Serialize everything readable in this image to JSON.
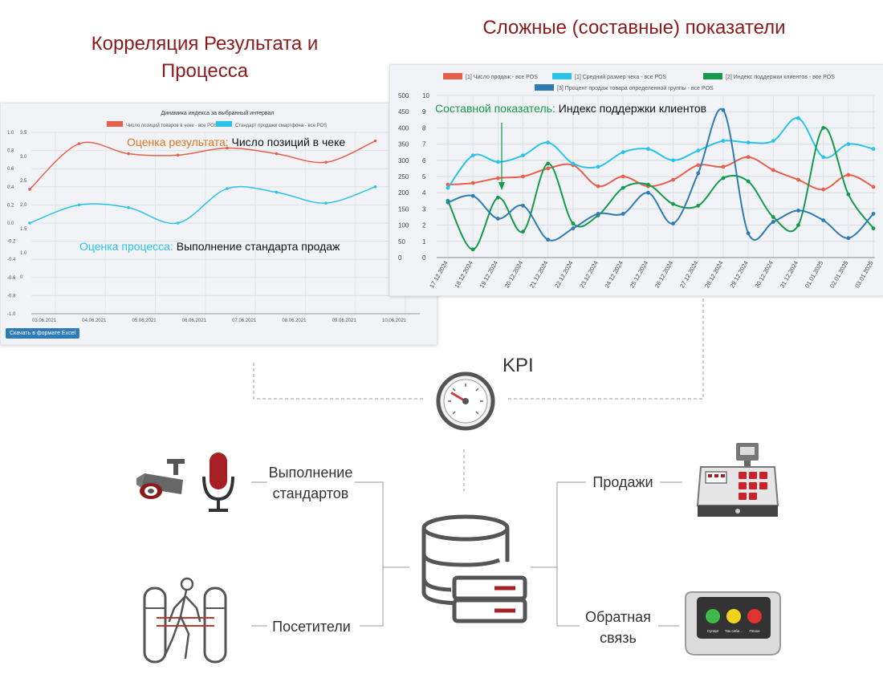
{
  "headings": {
    "left": "Корреляция  Результата и Процесса",
    "right": "Сложные (составные) показатели"
  },
  "kpi": {
    "label": "KPI"
  },
  "labels": {
    "standards": "Выполнение стандартов",
    "visitors": "Посетители",
    "sales": "Продажи",
    "feedback": "Обратная связь"
  },
  "left_panel": {
    "annotation_result_prefix": "Оценка результата:",
    "annotation_result_text": "Число позиций в чеке",
    "annotation_process_prefix": "Оценка процесса:",
    "annotation_process_text": "Выполнение стандарта продаж",
    "download_button": "Скачать в формате Excel"
  },
  "right_panel": {
    "annotation_prefix": "Составной показатель:",
    "annotation_text": "Индекс поддержки клиентов"
  },
  "feedback_device": {
    "buttons": [
      "Супер!",
      "Так себе...",
      "Плохо"
    ]
  },
  "colors": {
    "heading": "#8b1a1a",
    "red": "#e8604c",
    "cyan": "#28c4ec",
    "green": "#149c4c",
    "blue": "#2f7cb4",
    "result_orange": "#e0761c",
    "process_cyan": "#28c4ec"
  },
  "icons": [
    "gauge-icon",
    "camera-icon",
    "microphone-icon",
    "database-icon",
    "turnstile-icon",
    "cash-register-icon",
    "feedback-terminal-icon"
  ],
  "chart_data": [
    {
      "type": "line",
      "title": "Динамика индекса за выбранный интервал",
      "x": [
        "03.06.2021",
        "04.06.2021",
        "05.06.2021",
        "06.06.2021",
        "07.06.2021",
        "08.06.2021",
        "09.06.2021",
        "10.06.2021"
      ],
      "x_tick_labels": [
        "03.06.2021",
        "04.06.2021",
        "05.06.2021",
        "06.06.2021",
        "07.06.2021",
        "08.06.2021",
        "09.06.2021",
        "10.06.2021"
      ],
      "left_axis_ticks": [
        "1.0",
        "0.8",
        "0.6",
        "0.4",
        "0.2",
        "0.0",
        "-0.2",
        "-0.4",
        "-0.6",
        "-0.8",
        "-1.0"
      ],
      "right_axis_ticks": [
        "3.5",
        "3.0",
        "2.5",
        "2.0",
        "1.5",
        "1.0",
        "0"
      ],
      "ylim": [
        -1.0,
        1.0
      ],
      "grid": true,
      "legend": "top",
      "series": [
        {
          "name": "Число позиций товаров в чеке - все POS",
          "color": "#e8604c",
          "values": [
            1.5,
            3.1,
            2.75,
            2.7,
            2.95,
            2.75,
            2.45,
            3.2
          ]
        },
        {
          "name": "Стандарт продажи смартфона - все POS",
          "color": "#28c4ec",
          "values": [
            0.0,
            0.2,
            0.17,
            0.0,
            0.38,
            0.34,
            0.22,
            0.4
          ]
        }
      ]
    },
    {
      "type": "line",
      "x": [
        "17.12.2024",
        "18.12.2024",
        "19.12.2024",
        "20.12.2024",
        "21.12.2024",
        "22.12.2024",
        "23.12.2024",
        "24.12.2024",
        "25.12.2024",
        "26.12.2024",
        "27.12.2024",
        "28.12.2024",
        "29.12.2024",
        "30.12.2024",
        "31.12.2024",
        "01.01.2025",
        "02.01.2025",
        "03.01.2025"
      ],
      "x_tick_labels": [
        "17.12.2024",
        "18.12.2024",
        "19.12.2024",
        "20.12.2024",
        "21.12.2024",
        "22.12.2024",
        "23.12.2024",
        "24.12.2024",
        "25.12.2024",
        "26.12.2024",
        "27.12.2024",
        "28.12.2024",
        "29.12.2024",
        "30.12.2024",
        "31.12.2024",
        "01.01.2025",
        "02.01.2025",
        "03.01.2025"
      ],
      "left_axis_ticks": [
        "500",
        "450",
        "400",
        "350",
        "300",
        "250",
        "200",
        "150",
        "100",
        "50",
        "0"
      ],
      "right_axis_ticks": [
        "10",
        "9",
        "8",
        "7",
        "6",
        "5",
        "4",
        "3",
        "2",
        "1",
        "0"
      ],
      "ylim": [
        0,
        500
      ],
      "grid": true,
      "legend": "top",
      "series": [
        {
          "name": "[1]  Число продаж - все POS",
          "color": "#e8604c",
          "values": [
            225,
            230,
            245,
            250,
            275,
            285,
            220,
            250,
            220,
            240,
            285,
            280,
            310,
            270,
            240,
            210,
            255,
            218
          ]
        },
        {
          "name": "[1]  Средний размер чека - все POS",
          "color": "#28c4ec",
          "values": [
            215,
            315,
            295,
            315,
            355,
            290,
            280,
            325,
            335,
            300,
            330,
            360,
            355,
            360,
            430,
            310,
            350,
            335
          ]
        },
        {
          "name": "[2]  Индекс поддержки клиентов - все POS",
          "color": "#149c4c",
          "values": [
            3.5,
            0.5,
            3.7,
            1.6,
            5.8,
            2.1,
            2.6,
            4.3,
            4.5,
            3.3,
            3.2,
            4.9,
            4.7,
            2.5,
            2.0,
            8.0,
            3.9,
            1.8
          ]
        },
        {
          "name": "[3]  Процент продаж товара определенной группы - все POS",
          "color": "#2f7cb4",
          "values": [
            3.4,
            3.8,
            2.4,
            3.2,
            1.1,
            1.8,
            2.7,
            2.7,
            4.0,
            2.1,
            5.2,
            9.1,
            1.5,
            2.2,
            2.9,
            2.3,
            1.2,
            2.7
          ]
        }
      ]
    }
  ]
}
